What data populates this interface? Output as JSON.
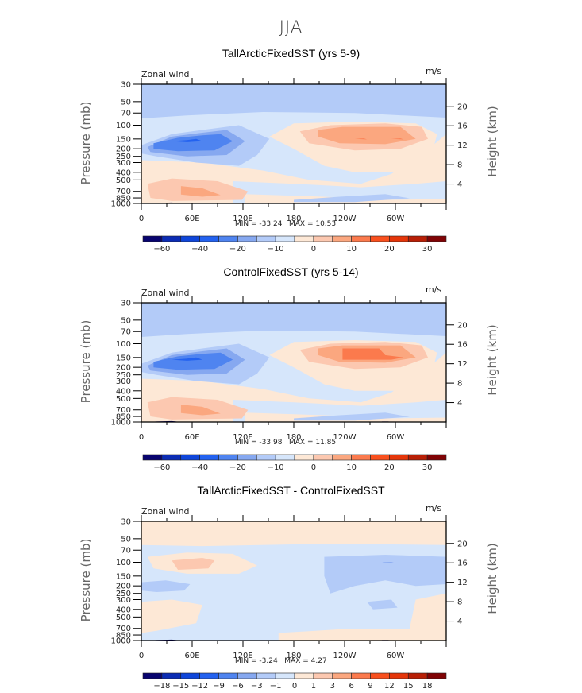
{
  "figure": {
    "main_title": "JJA"
  },
  "colorbar_colors": [
    "#08046f",
    "#0b2cb4",
    "#0f46da",
    "#2362f0",
    "#4f84f0",
    "#86a8f0",
    "#b3cbf8",
    "#d6e6fb",
    "#fde8d6",
    "#fcc8b0",
    "#fba77f",
    "#fb7a4d",
    "#f9501e",
    "#e5360a",
    "#b81f06",
    "#800305"
  ],
  "chart_data": [
    {
      "type": "heatmap",
      "title": "TallArcticFixedSST (yrs 5-9)",
      "variable": "Zonal wind",
      "units": "m/s",
      "xlabel": "",
      "ylabel": "Pressure (mb)",
      "ylabel_right": "Height (km)",
      "x_ticks": [
        "0",
        "60E",
        "120E",
        "180",
        "120W",
        "60W"
      ],
      "y_ticks": [
        "30",
        "50",
        "70",
        "100",
        "150",
        "200",
        "250",
        "300",
        "400",
        "500",
        "700",
        "850",
        "1000"
      ],
      "y_ticks_right": [
        "20",
        "16",
        "12",
        "8",
        "4"
      ],
      "xlim": [
        0,
        360
      ],
      "ylim": [
        1000,
        30
      ],
      "min_label": "MIN = -33.24",
      "max_label": "MAX = 10.53",
      "min": -33.24,
      "max": 10.53,
      "colorbar": {
        "levels": [
          -70,
          -60,
          -50,
          -40,
          -30,
          -20,
          -15,
          -10,
          -5,
          0,
          5,
          10,
          15,
          20,
          25,
          30,
          35
        ],
        "labels": [
          "-60",
          "-40",
          "-20",
          "-10",
          "0",
          "10",
          "20",
          "30"
        ]
      },
      "features": [
        {
          "kind": "jet",
          "sign": "negative",
          "lon_center": 40,
          "pressure_center": 160,
          "peak": -33.24
        },
        {
          "kind": "jet",
          "sign": "positive",
          "lon_center": 255,
          "pressure_center": 130,
          "peak": 10.53
        },
        {
          "kind": "easterly_lower",
          "sign": "positive",
          "lon_center": 50,
          "pressure_center": 650
        }
      ]
    },
    {
      "type": "heatmap",
      "title": "ControlFixedSST (yrs 5-14)",
      "variable": "Zonal wind",
      "units": "m/s",
      "xlabel": "",
      "ylabel": "Pressure (mb)",
      "ylabel_right": "Height (km)",
      "x_ticks": [
        "0",
        "60E",
        "120E",
        "180",
        "120W",
        "60W"
      ],
      "y_ticks": [
        "30",
        "50",
        "70",
        "100",
        "150",
        "200",
        "250",
        "300",
        "400",
        "500",
        "700",
        "850",
        "1000"
      ],
      "y_ticks_right": [
        "20",
        "16",
        "12",
        "8",
        "4"
      ],
      "xlim": [
        0,
        360
      ],
      "ylim": [
        1000,
        30
      ],
      "min_label": "MIN = -33.98",
      "max_label": "MAX = 11.85",
      "min": -33.98,
      "max": 11.85,
      "colorbar": {
        "levels": [
          -70,
          -60,
          -50,
          -40,
          -30,
          -20,
          -15,
          -10,
          -5,
          0,
          5,
          10,
          15,
          20,
          25,
          30,
          35
        ],
        "labels": [
          "-60",
          "-40",
          "-20",
          "-10",
          "0",
          "10",
          "20",
          "30"
        ]
      },
      "features": [
        {
          "kind": "jet",
          "sign": "negative",
          "lon_center": 40,
          "pressure_center": 160,
          "peak": -33.98
        },
        {
          "kind": "jet",
          "sign": "positive",
          "lon_center": 255,
          "pressure_center": 120,
          "peak": 11.85
        },
        {
          "kind": "easterly_lower",
          "sign": "positive",
          "lon_center": 50,
          "pressure_center": 650
        }
      ]
    },
    {
      "type": "heatmap",
      "title": "TallArcticFixedSST - ControlFixedSST",
      "variable": "Zonal wind",
      "units": "m/s",
      "xlabel": "",
      "ylabel": "Pressure (mb)",
      "ylabel_right": "Height (km)",
      "x_ticks": [
        "0",
        "60E",
        "120E",
        "180",
        "120W",
        "60W"
      ],
      "y_ticks": [
        "30",
        "50",
        "70",
        "100",
        "150",
        "200",
        "250",
        "300",
        "400",
        "500",
        "700",
        "850",
        "1000"
      ],
      "y_ticks_right": [
        "20",
        "16",
        "12",
        "8",
        "4"
      ],
      "xlim": [
        0,
        360
      ],
      "ylim": [
        1000,
        30
      ],
      "min_label": "MIN = -3.24",
      "max_label": "MAX = 4.27",
      "min": -3.24,
      "max": 4.27,
      "colorbar": {
        "levels": [
          -21,
          -18,
          -15,
          -12,
          -9,
          -6,
          -3,
          -1,
          0,
          1,
          3,
          6,
          9,
          12,
          15,
          18,
          21
        ],
        "labels": [
          "-18",
          "-15",
          "-12",
          "-9",
          "-6",
          "-3",
          "-1",
          "0",
          "1",
          "3",
          "6",
          "9",
          "12",
          "15",
          "18"
        ]
      },
      "features": [
        {
          "kind": "anomaly",
          "sign": "positive",
          "lon_center": 45,
          "pressure_center": 110,
          "peak": 4.27
        },
        {
          "kind": "anomaly",
          "sign": "negative",
          "lon_center": 280,
          "pressure_center": 110,
          "peak": -3.24
        }
      ]
    }
  ]
}
